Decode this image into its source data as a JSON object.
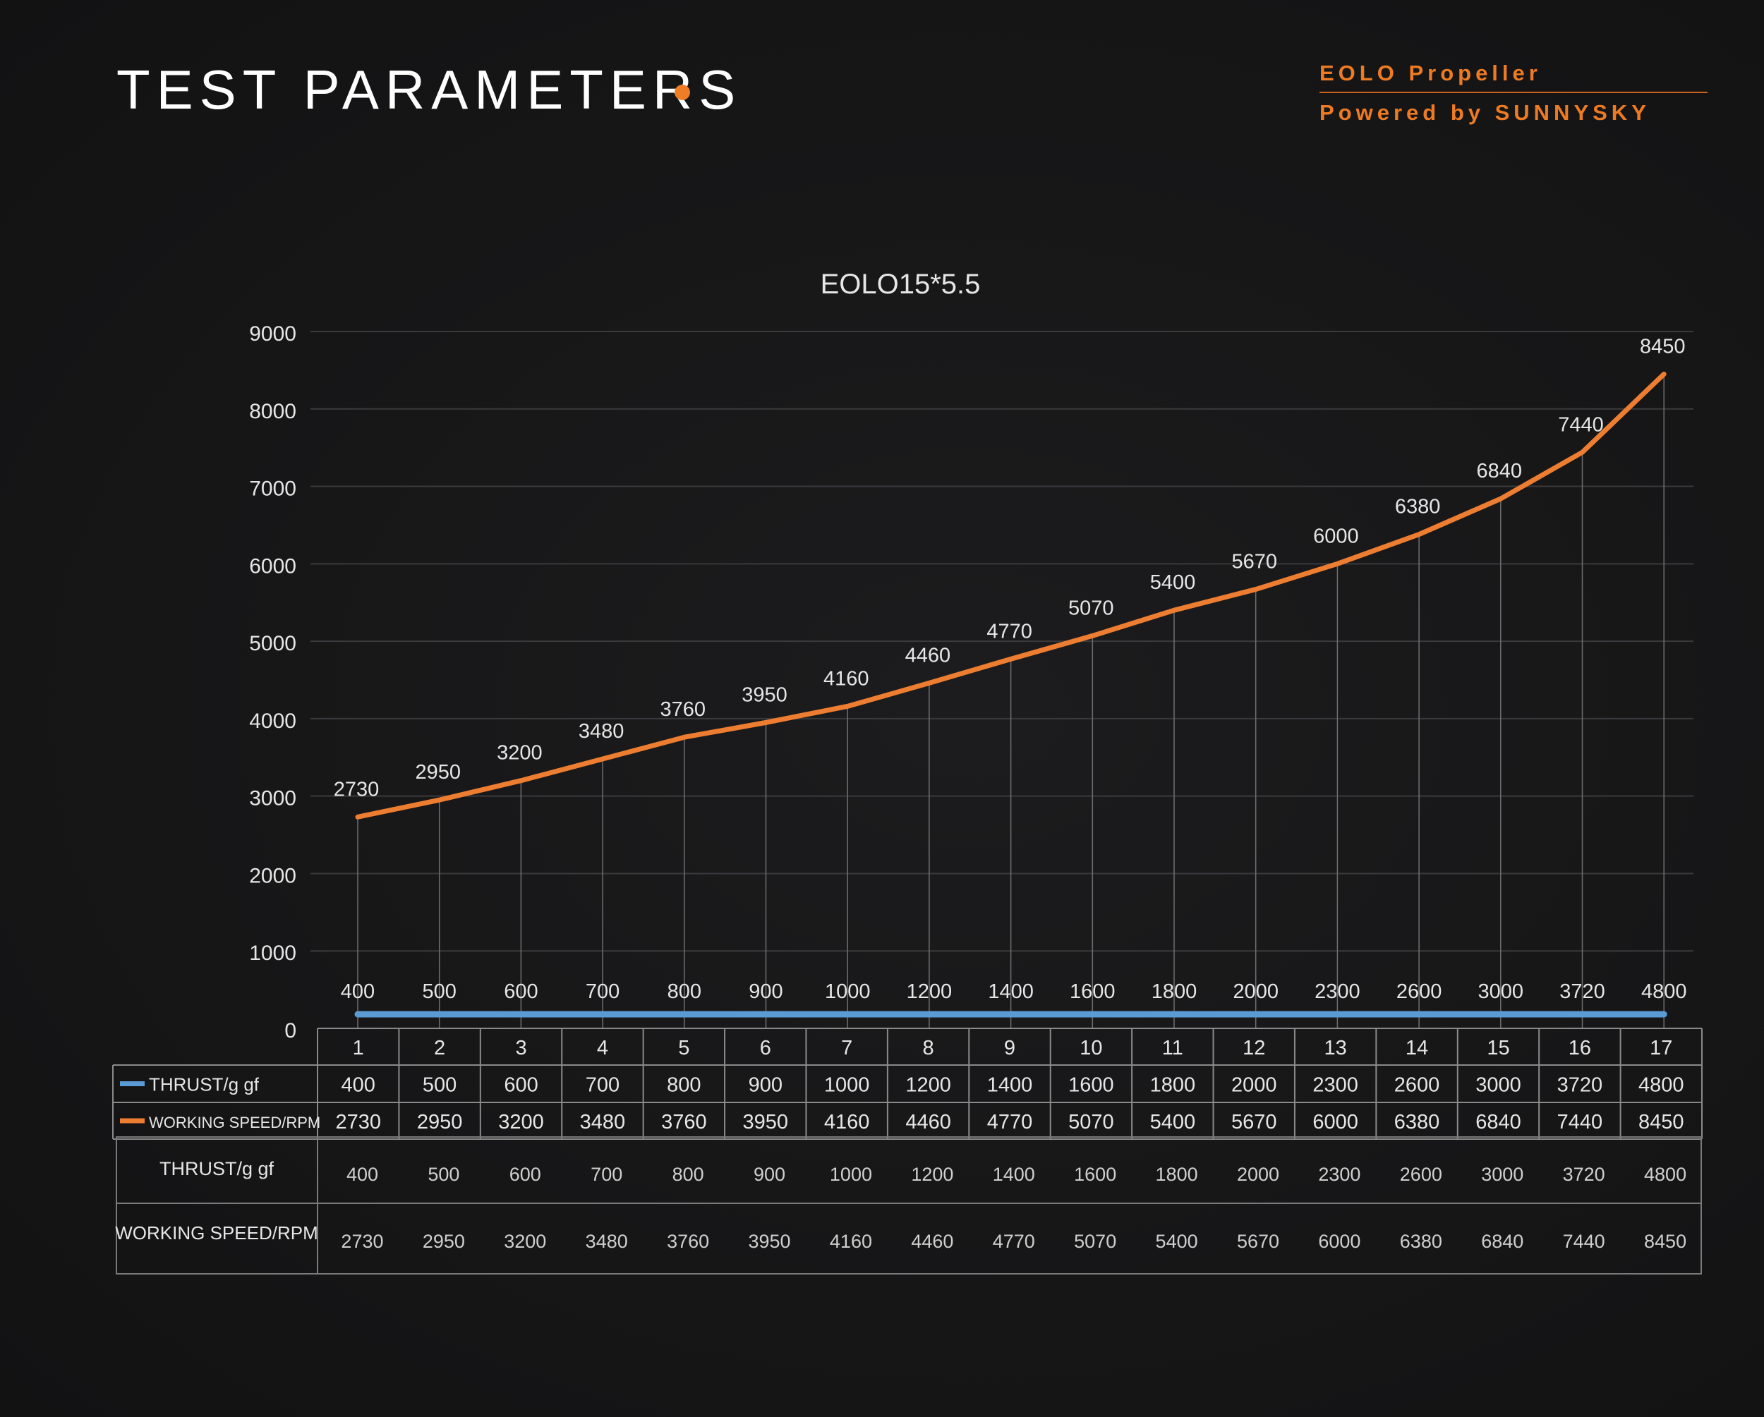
{
  "header": {
    "title": "TEST PARAMETERS",
    "brand_line1": "EOLO Propeller",
    "brand_line2": "Powered by SUNNYSKY",
    "accent_color": "#ef7d26"
  },
  "chart_data": {
    "type": "line",
    "title": "EOLO15*5.5",
    "categories": [
      "1",
      "2",
      "3",
      "4",
      "5",
      "6",
      "7",
      "8",
      "9",
      "10",
      "11",
      "12",
      "13",
      "14",
      "15",
      "16",
      "17"
    ],
    "series": [
      {
        "name": "THRUST/g gf",
        "color": "#5b9bd5",
        "values": [
          400,
          500,
          600,
          700,
          800,
          900,
          1000,
          1200,
          1400,
          1600,
          1800,
          2000,
          2300,
          2600,
          3000,
          3720,
          4800
        ]
      },
      {
        "name": "WORKING SPEED/RPM",
        "color": "#ed7d31",
        "values": [
          2730,
          2950,
          3200,
          3480,
          3760,
          3950,
          4160,
          4460,
          4770,
          5070,
          5400,
          5670,
          6000,
          6380,
          6840,
          7440,
          8450
        ]
      }
    ],
    "yticks": [
      "0",
      "1000",
      "2000",
      "3000",
      "4000",
      "5000",
      "6000",
      "7000",
      "8000",
      "9000"
    ],
    "ylim": [
      0,
      9000
    ],
    "grid": true,
    "legend": "data table"
  },
  "summary_table": {
    "rows": [
      {
        "label": "THRUST/g gf",
        "values": [
          "400",
          "500",
          "600",
          "700",
          "800",
          "900",
          "1000",
          "1200",
          "1400",
          "1600",
          "1800",
          "2000",
          "2300",
          "2600",
          "3000",
          "3720",
          "4800"
        ]
      },
      {
        "label": "WORKING SPEED/RPM",
        "values": [
          "2730",
          "2950",
          "3200",
          "3480",
          "3760",
          "3950",
          "4160",
          "4460",
          "4770",
          "5070",
          "5400",
          "5670",
          "6000",
          "6380",
          "6840",
          "7440",
          "8450"
        ]
      }
    ]
  }
}
